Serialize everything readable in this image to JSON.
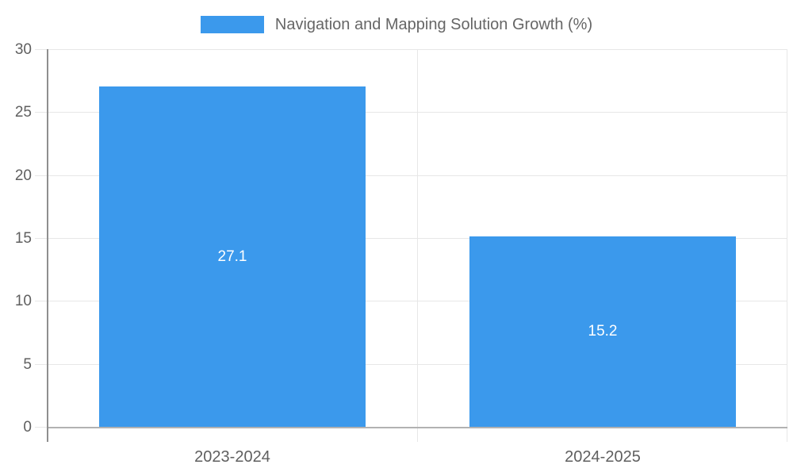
{
  "chart_data": {
    "type": "bar",
    "title": "",
    "legend": {
      "position": "top",
      "label": "Navigation and Mapping Solution Growth (%)"
    },
    "categories": [
      "2023-2024",
      "2024-2025"
    ],
    "series": [
      {
        "name": "Navigation and Mapping Solution Growth (%)",
        "color": "#3b99ec",
        "values": [
          27.1,
          15.2
        ]
      }
    ],
    "value_labels": [
      "27.1",
      "15.2"
    ],
    "xlabel": "",
    "ylabel": "",
    "ylim": [
      0,
      30
    ],
    "yticks": [
      0,
      5,
      10,
      15,
      20,
      25,
      30
    ],
    "grid": true,
    "colors": {
      "bar": "#3b99ec",
      "axis_line": "#8f8f8f",
      "baseline": "#b2b2b2",
      "gridline": "#e7e7e7",
      "tick_text": "#5f5f5f",
      "legend_text": "#666666",
      "value_text": "#ffffff",
      "background": "#ffffff"
    }
  }
}
